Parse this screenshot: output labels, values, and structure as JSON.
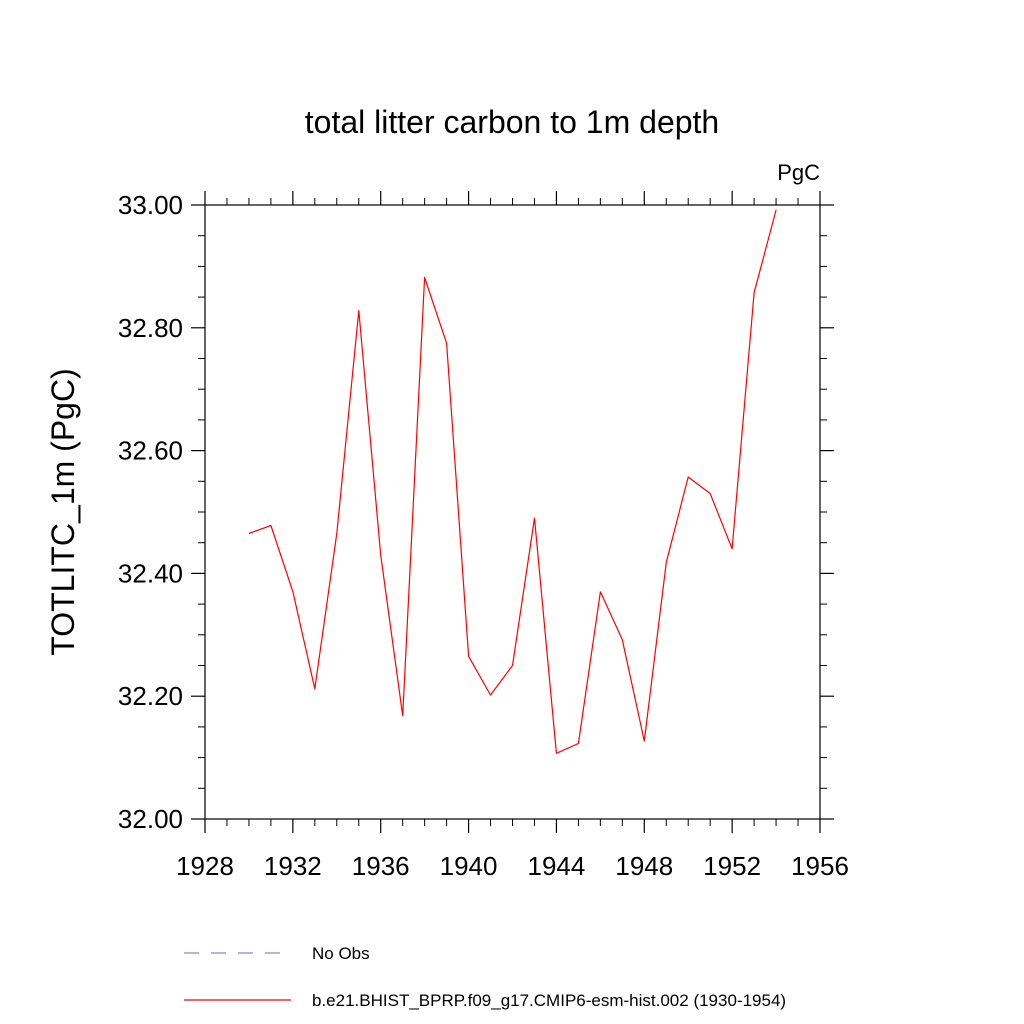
{
  "chart_data": {
    "type": "line",
    "title": "total litter carbon to 1m depth",
    "units_label": "PgC",
    "ylabel": "TOTLITC_1m  (PgC)",
    "xlabel": "",
    "xlim": [
      1928,
      1956
    ],
    "ylim": [
      32.0,
      33.0
    ],
    "x_ticks": [
      1928,
      1932,
      1936,
      1940,
      1944,
      1948,
      1952,
      1956
    ],
    "y_ticks": [
      "32.00",
      "32.20",
      "32.40",
      "32.60",
      "32.80",
      "33.00"
    ],
    "series": [
      {
        "name": "b.e21.BHIST_BPRP.f09_g17.CMIP6-esm-hist.002 (1930-1954)",
        "color": "#ff0000",
        "style": "solid",
        "x": [
          1930,
          1931,
          1932,
          1933,
          1934,
          1935,
          1936,
          1937,
          1938,
          1939,
          1940,
          1941,
          1942,
          1943,
          1944,
          1945,
          1946,
          1947,
          1948,
          1949,
          1950,
          1951,
          1952,
          1953,
          1954
        ],
        "y": [
          32.465,
          32.478,
          32.37,
          32.212,
          32.465,
          32.828,
          32.43,
          32.168,
          32.882,
          32.775,
          32.265,
          32.202,
          32.25,
          32.49,
          32.107,
          32.123,
          32.37,
          32.292,
          32.127,
          32.418,
          32.557,
          32.53,
          32.44,
          32.857,
          32.992
        ]
      }
    ],
    "legend": {
      "placement": "bottom",
      "entries": [
        {
          "label": "No Obs",
          "color": "#8888cc",
          "style": "dashed"
        },
        {
          "label": "b.e21.BHIST_BPRP.f09_g17.CMIP6-esm-hist.002 (1930-1954)",
          "color": "#ff0000",
          "style": "solid"
        }
      ]
    }
  }
}
